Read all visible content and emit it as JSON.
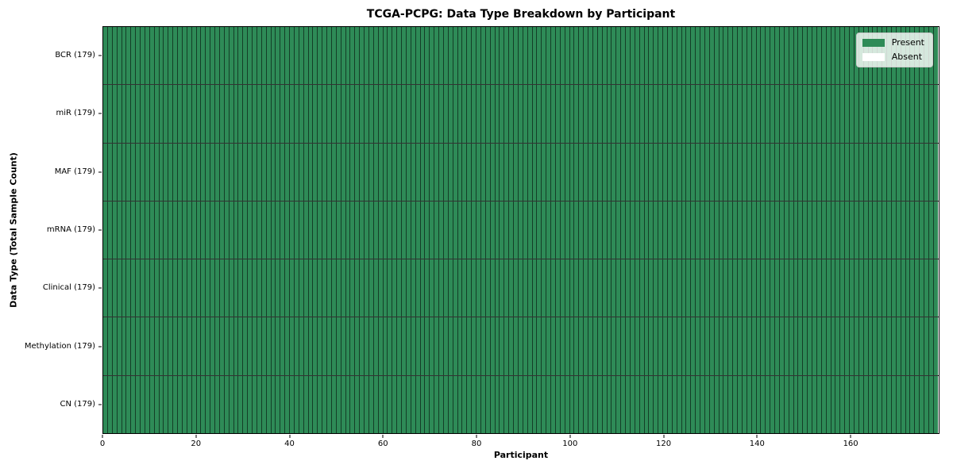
{
  "figure": {
    "background": "#ffffff"
  },
  "chart_data": {
    "type": "heatmap",
    "title": "TCGA-PCPG: Data Type Breakdown by Participant",
    "xlabel": "Participant",
    "ylabel": "Data Type (Total Sample Count)",
    "xlim": [
      0,
      179
    ],
    "x_ticks": [
      0,
      20,
      40,
      60,
      80,
      100,
      120,
      140,
      160
    ],
    "n_participants": 179,
    "rows": [
      {
        "label": "BCR (179)",
        "data_type": "BCR",
        "total_samples": 179,
        "present_count": 179,
        "absent_count": 0
      },
      {
        "label": "miR (179)",
        "data_type": "miR",
        "total_samples": 179,
        "present_count": 179,
        "absent_count": 0
      },
      {
        "label": "MAF (179)",
        "data_type": "MAF",
        "total_samples": 179,
        "present_count": 179,
        "absent_count": 0
      },
      {
        "label": "mRNA (179)",
        "data_type": "mRNA",
        "total_samples": 179,
        "present_count": 179,
        "absent_count": 0
      },
      {
        "label": "Clinical (179)",
        "data_type": "Clinical",
        "total_samples": 179,
        "present_count": 179,
        "absent_count": 0
      },
      {
        "label": "Methylation (179)",
        "data_type": "Methylation",
        "total_samples": 179,
        "present_count": 179,
        "absent_count": 0
      },
      {
        "label": "CN (179)",
        "data_type": "CN",
        "total_samples": 179,
        "present_count": 179,
        "absent_count": 0
      }
    ],
    "legend": {
      "position": "upper right",
      "entries": [
        {
          "label": "Present",
          "color": "#2e8b57"
        },
        {
          "label": "Absent",
          "color": "#ffffff"
        }
      ]
    },
    "colors": {
      "present": "#2e8b57",
      "absent": "#ffffff",
      "cell_edge": "#000000",
      "spine": "#000000"
    },
    "grid": false
  }
}
